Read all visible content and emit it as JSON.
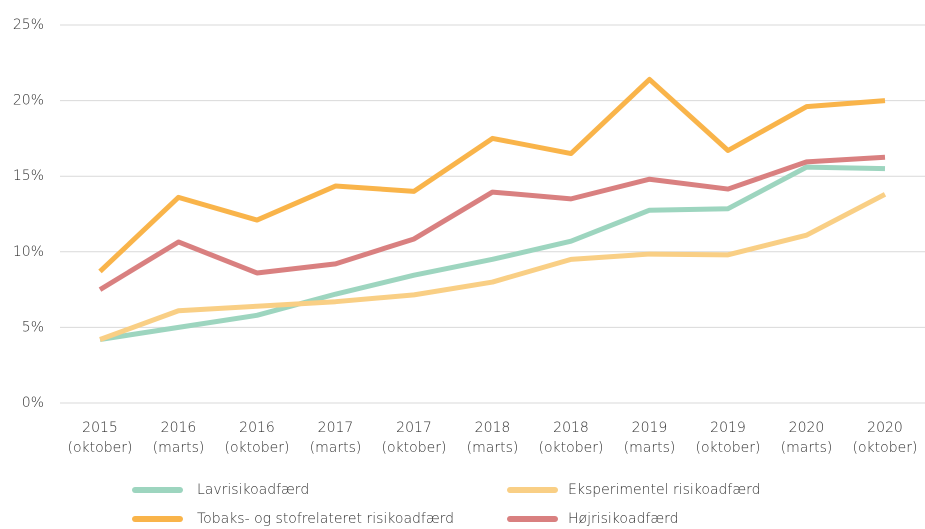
{
  "chart_data": {
    "type": "line",
    "categories": [
      [
        "2015",
        "(oktober)"
      ],
      [
        "2016",
        "(marts)"
      ],
      [
        "2016",
        "(oktober)"
      ],
      [
        "2017",
        "(marts)"
      ],
      [
        "2017",
        "(oktober)"
      ],
      [
        "2018",
        "(marts)"
      ],
      [
        "2018",
        "(oktober)"
      ],
      [
        "2019",
        "(marts)"
      ],
      [
        "2019",
        "(oktober)"
      ],
      [
        "2020",
        "(marts)"
      ],
      [
        "2020",
        "(oktober)"
      ]
    ],
    "series": [
      {
        "name": "Lavrisikoadfærd",
        "color": "#9dd5bf",
        "values": [
          4.2,
          5.0,
          5.8,
          7.2,
          8.45,
          9.5,
          10.7,
          12.75,
          12.85,
          15.6,
          15.5
        ]
      },
      {
        "name": "Eksperimentel risikoadfærd",
        "color": "#f9cf85",
        "values": [
          4.2,
          6.1,
          6.4,
          6.7,
          7.15,
          8.0,
          9.5,
          9.85,
          9.8,
          11.1,
          13.8
        ]
      },
      {
        "name": "Tobaks- og stofrelateret risikoadfærd",
        "color": "#f9b44a",
        "values": [
          8.7,
          13.6,
          12.1,
          14.35,
          14.0,
          17.5,
          16.5,
          21.4,
          16.7,
          19.6,
          20.0
        ]
      },
      {
        "name": "Højrisikoadfærd",
        "color": "#d98080",
        "values": [
          7.5,
          10.65,
          8.6,
          9.2,
          10.85,
          13.95,
          13.5,
          14.8,
          14.15,
          15.95,
          16.25
        ]
      }
    ],
    "ylim": [
      0,
      25
    ],
    "yticks": [
      {
        "value": 0,
        "label": "0%"
      },
      {
        "value": 5,
        "label": "5%"
      },
      {
        "value": 10,
        "label": "10%"
      },
      {
        "value": 15,
        "label": "15%"
      },
      {
        "value": 20,
        "label": "20%"
      },
      {
        "value": 25,
        "label": "25%"
      }
    ],
    "grid": true,
    "legend": "bottom"
  }
}
